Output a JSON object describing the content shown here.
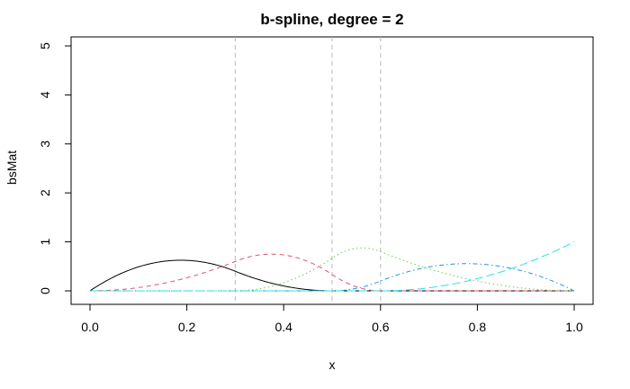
{
  "chart_data": {
    "type": "line",
    "title": "b-spline, degree = 2",
    "xlabel": "x",
    "ylabel": "bsMat",
    "xlim": [
      0,
      1
    ],
    "ylim": [
      0,
      5
    ],
    "x_ticks": [
      0.0,
      0.2,
      0.4,
      0.6,
      0.8,
      1.0
    ],
    "x_tick_labels": [
      "0.0",
      "0.2",
      "0.4",
      "0.6",
      "0.8",
      "1.0"
    ],
    "y_ticks": [
      0,
      1,
      2,
      3,
      4,
      5
    ],
    "y_tick_labels": [
      "0",
      "1",
      "2",
      "3",
      "4",
      "5"
    ],
    "grid": false,
    "degree": 2,
    "internal_knots": [
      0.3,
      0.5,
      0.6
    ],
    "boundary_knots": [
      0,
      1
    ],
    "series_count": 6,
    "series_colors": [
      "#000000",
      "#DF536B",
      "#61D04F",
      "#2297E6",
      "#28E2E5",
      "#CD0BBC"
    ],
    "series_dash": [
      "solid",
      "dashed",
      "dotted",
      "dotdash",
      "longdash",
      "twodash"
    ]
  }
}
